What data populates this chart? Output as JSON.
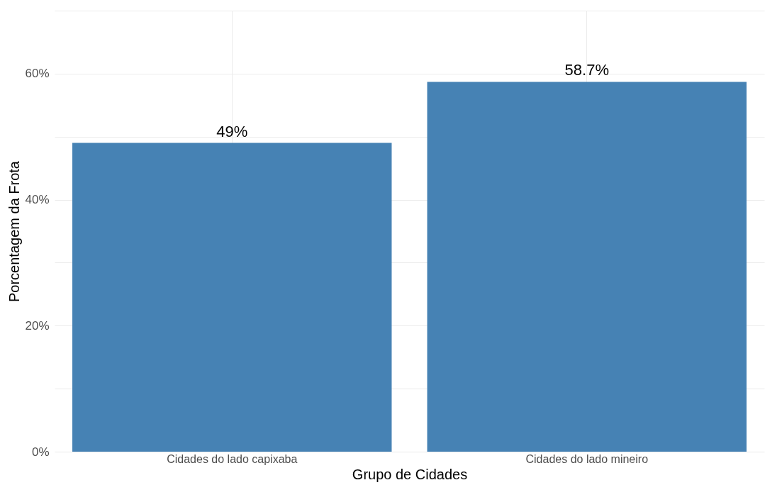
{
  "chart_data": {
    "type": "bar",
    "xlabel": "Grupo de Cidades",
    "ylabel": "Porcentagem da Frota",
    "categories": [
      "Cidades do lado capixaba",
      "Cidades do lado mineiro"
    ],
    "values": [
      49,
      58.7
    ],
    "color": "#4682b4",
    "value_labels": [
      "49%",
      "58.7%"
    ],
    "ylim": [
      0,
      70
    ],
    "yticks": [
      {
        "value": 0,
        "label": "0%"
      },
      {
        "value": 10,
        "label": null
      },
      {
        "value": 20,
        "label": "20%"
      },
      {
        "value": 30,
        "label": null
      },
      {
        "value": 40,
        "label": "40%"
      },
      {
        "value": 50,
        "label": null
      },
      {
        "value": 60,
        "label": "60%"
      },
      {
        "value": 70,
        "label": null
      }
    ],
    "grid": true
  }
}
